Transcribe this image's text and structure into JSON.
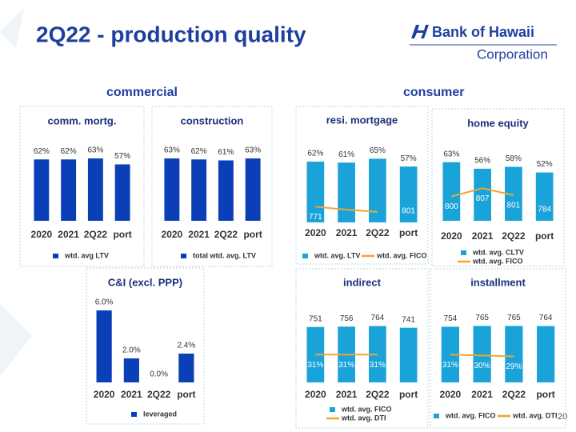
{
  "header": {
    "title": "2Q22 - production quality",
    "logo_name": "Bank of Hawaii",
    "logo_sub": "Corporation",
    "sections": [
      "commercial",
      "consumer"
    ],
    "page_number": "20"
  },
  "chart_data": [
    {
      "type": "bar",
      "title": "comm. mortg.",
      "categories": [
        "2020",
        "2021",
        "2Q22",
        "port"
      ],
      "series": [
        {
          "name": "wtd. avg LTV",
          "color": "#0b3fb8",
          "values": [
            62,
            62,
            63,
            57
          ],
          "value_labels": [
            "62%",
            "62%",
            "63%",
            "57%"
          ]
        }
      ],
      "ylim": [
        0,
        80
      ],
      "legend": "bottom"
    },
    {
      "type": "bar",
      "title": "construction",
      "categories": [
        "2020",
        "2021",
        "2Q22",
        "port"
      ],
      "series": [
        {
          "name": "total wtd. avg. LTV",
          "color": "#0b3fb8",
          "values": [
            63,
            62,
            61,
            63
          ],
          "value_labels": [
            "63%",
            "62%",
            "61%",
            "63%"
          ]
        }
      ],
      "ylim": [
        0,
        80
      ],
      "legend": "bottom"
    },
    {
      "type": "bar",
      "title": "C&I (excl. PPP)",
      "categories": [
        "2020",
        "2021",
        "2Q22",
        "port"
      ],
      "series": [
        {
          "name": "leveraged",
          "color": "#0b3fb8",
          "values": [
            6.0,
            2.0,
            0.0,
            2.4
          ],
          "value_labels": [
            "6.0%",
            "2.0%",
            "0.0%",
            "2.4%"
          ]
        }
      ],
      "ylim": [
        0,
        7
      ],
      "legend": "bottom"
    },
    {
      "type": "bar",
      "title": "resi. mortgage",
      "categories": [
        "2020",
        "2021",
        "2Q22",
        "port"
      ],
      "series": [
        {
          "name": "wtd. avg. LTV",
          "color": "#1aa3d9",
          "values": [
            62,
            61,
            65,
            57
          ],
          "value_labels": [
            "62%",
            "61%",
            "65%",
            "57%"
          ]
        },
        {
          "name": "wtd. avg. FICO",
          "type": "line",
          "axis": "y2",
          "color": "#f0a630",
          "values": [
            771,
            767,
            764,
            null
          ],
          "value_labels": [
            "771",
            null,
            null,
            null
          ]
        }
      ],
      "extra_labels": [
        {
          "category": "port",
          "value": 801
        }
      ],
      "ylim": [
        0,
        80
      ],
      "y2lim": [
        750,
        855
      ],
      "legend": "bottom"
    },
    {
      "type": "bar",
      "title": "home equity",
      "categories": [
        "2020",
        "2021",
        "2Q22",
        "port"
      ],
      "series": [
        {
          "name": "wtd. avg. CLTV",
          "color": "#1aa3d9",
          "values": [
            63,
            56,
            58,
            52
          ],
          "value_labels": [
            "63%",
            "56%",
            "58%",
            "52%"
          ]
        },
        {
          "name": "wtd. avg. FICO",
          "type": "line",
          "axis": "y2",
          "color": "#f0a630",
          "values": [
            800,
            807,
            801,
            null
          ],
          "value_labels": [
            "800",
            "807",
            "801",
            null
          ]
        }
      ],
      "extra_labels": [
        {
          "category": "port",
          "value": 784
        }
      ],
      "ylim": [
        0,
        80
      ],
      "y2lim": [
        779,
        843
      ],
      "legend": "bottom"
    },
    {
      "type": "bar",
      "title": "indirect",
      "categories": [
        "2020",
        "2021",
        "2Q22",
        "port"
      ],
      "series": [
        {
          "name": "wtd. avg. FICO",
          "color": "#1aa3d9",
          "values": [
            751,
            756,
            764,
            741
          ]
        },
        {
          "name": "wtd. avg. DTI",
          "type": "line",
          "axis": "y2",
          "color": "#f0a630",
          "values": [
            31,
            31,
            31,
            null
          ],
          "value_labels": [
            "31%",
            "31%",
            "31%",
            null
          ]
        }
      ],
      "ylim": [
        0,
        900
      ],
      "y2lim": [
        0,
        74
      ],
      "legend": "bottom"
    },
    {
      "type": "bar",
      "title": "installment",
      "categories": [
        "2020",
        "2021",
        "2Q22",
        "port"
      ],
      "series": [
        {
          "name": "wtd. avg. FICO",
          "color": "#1aa3d9",
          "values": [
            754,
            765,
            765,
            764
          ]
        },
        {
          "name": "wtd. avg. DTI",
          "type": "line",
          "axis": "y2",
          "color": "#f0a630",
          "values": [
            31,
            30,
            29,
            null
          ],
          "value_labels": [
            "31%",
            "30%",
            "29%",
            null
          ]
        }
      ],
      "ylim": [
        0,
        900
      ],
      "y2lim": [
        0,
        74
      ],
      "legend": "bottom"
    }
  ]
}
